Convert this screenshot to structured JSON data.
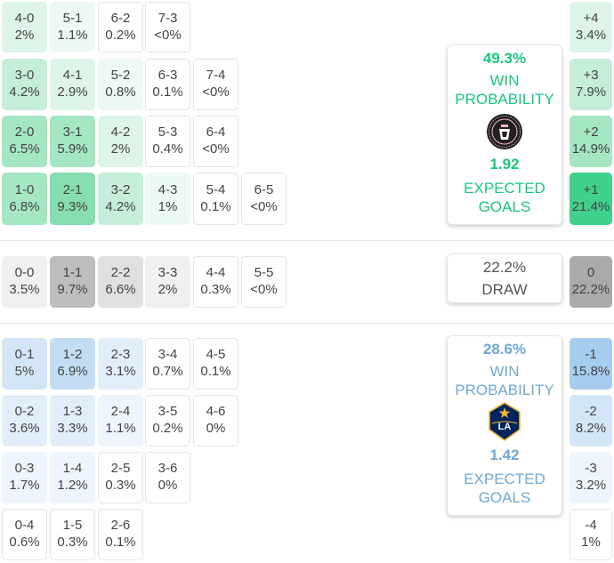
{
  "colors": {
    "home_accent": "#19c77a",
    "away_accent": "#6fa8d6",
    "draw_accent": "#555555"
  },
  "home_scores": [
    {
      "score": "4-0",
      "prob": "2%",
      "level": 2
    },
    {
      "score": "5-1",
      "prob": "1.1%",
      "level": 1
    },
    {
      "score": "6-2",
      "prob": "0.2%",
      "level": 0
    },
    {
      "score": "7-3",
      "prob": "<0%",
      "level": 0
    },
    {
      "score": "3-0",
      "prob": "4.2%",
      "level": 3
    },
    {
      "score": "4-1",
      "prob": "2.9%",
      "level": 2
    },
    {
      "score": "5-2",
      "prob": "0.8%",
      "level": 1
    },
    {
      "score": "6-3",
      "prob": "0.1%",
      "level": 0
    },
    {
      "score": "7-4",
      "prob": "<0%",
      "level": 0
    },
    {
      "score": "2-0",
      "prob": "6.5%",
      "level": 4
    },
    {
      "score": "3-1",
      "prob": "5.9%",
      "level": 4
    },
    {
      "score": "4-2",
      "prob": "2%",
      "level": 2
    },
    {
      "score": "5-3",
      "prob": "0.4%",
      "level": 0
    },
    {
      "score": "6-4",
      "prob": "<0%",
      "level": 0
    },
    {
      "score": "1-0",
      "prob": "6.8%",
      "level": 4
    },
    {
      "score": "2-1",
      "prob": "9.3%",
      "level": 5
    },
    {
      "score": "3-2",
      "prob": "4.2%",
      "level": 3
    },
    {
      "score": "4-3",
      "prob": "1%",
      "level": 1
    },
    {
      "score": "5-4",
      "prob": "0.1%",
      "level": 0
    },
    {
      "score": "6-5",
      "prob": "<0%",
      "level": 0
    }
  ],
  "draw_scores": [
    {
      "score": "0-0",
      "prob": "3.5%",
      "level": 1
    },
    {
      "score": "1-1",
      "prob": "9.7%",
      "level": 3
    },
    {
      "score": "2-2",
      "prob": "6.6%",
      "level": 2
    },
    {
      "score": "3-3",
      "prob": "2%",
      "level": 1
    },
    {
      "score": "4-4",
      "prob": "0.3%",
      "level": 0
    },
    {
      "score": "5-5",
      "prob": "<0%",
      "level": 0
    }
  ],
  "away_scores": [
    {
      "score": "0-1",
      "prob": "5%",
      "level": 3
    },
    {
      "score": "1-2",
      "prob": "6.9%",
      "level": 4
    },
    {
      "score": "2-3",
      "prob": "3.1%",
      "level": 2
    },
    {
      "score": "3-4",
      "prob": "0.7%",
      "level": 0
    },
    {
      "score": "4-5",
      "prob": "0.1%",
      "level": 0
    },
    {
      "score": "0-2",
      "prob": "3.6%",
      "level": 2
    },
    {
      "score": "1-3",
      "prob": "3.3%",
      "level": 2
    },
    {
      "score": "2-4",
      "prob": "1.1%",
      "level": 1
    },
    {
      "score": "3-5",
      "prob": "0.2%",
      "level": 0
    },
    {
      "score": "4-6",
      "prob": "0%",
      "level": 0
    },
    {
      "score": "0-3",
      "prob": "1.7%",
      "level": 1
    },
    {
      "score": "1-4",
      "prob": "1.2%",
      "level": 1
    },
    {
      "score": "2-5",
      "prob": "0.3%",
      "level": 0
    },
    {
      "score": "3-6",
      "prob": "0%",
      "level": 0
    },
    {
      "score": "0-4",
      "prob": "0.6%",
      "level": 0
    },
    {
      "score": "1-5",
      "prob": "0.3%",
      "level": 0
    },
    {
      "score": "2-6",
      "prob": "0.1%",
      "level": 0
    }
  ],
  "home_margins": [
    {
      "label": "+4",
      "prob": "3.4%",
      "level": 2
    },
    {
      "label": "+3",
      "prob": "7.9%",
      "level": 3
    },
    {
      "label": "+2",
      "prob": "14.9%",
      "level": 4
    },
    {
      "label": "+1",
      "prob": "21.4%",
      "level": 6
    }
  ],
  "draw_margin": {
    "label": "0",
    "prob": "22.2%",
    "level": 4
  },
  "away_margins": [
    {
      "label": "-1",
      "prob": "15.8%",
      "level": 5
    },
    {
      "label": "-2",
      "prob": "8.2%",
      "level": 3
    },
    {
      "label": "-3",
      "prob": "3.2%",
      "level": 1
    },
    {
      "label": "-4",
      "prob": "1%",
      "level": 0
    }
  ],
  "home_summary": {
    "win_pct": "49.3%",
    "win_label_1": "WIN",
    "win_label_2": "PROBABILITY",
    "xg": "1.92",
    "xg_label_1": "EXPECTED",
    "xg_label_2": "GOALS",
    "logo_icon": "inter-miami-crest-icon"
  },
  "draw_summary": {
    "pct": "22.2%",
    "label": "DRAW"
  },
  "away_summary": {
    "win_pct": "28.6%",
    "win_label_1": "WIN",
    "win_label_2": "PROBABILITY",
    "xg": "1.42",
    "xg_label_1": "EXPECTED",
    "xg_label_2": "GOALS",
    "logo_icon": "la-galaxy-crest-icon"
  }
}
